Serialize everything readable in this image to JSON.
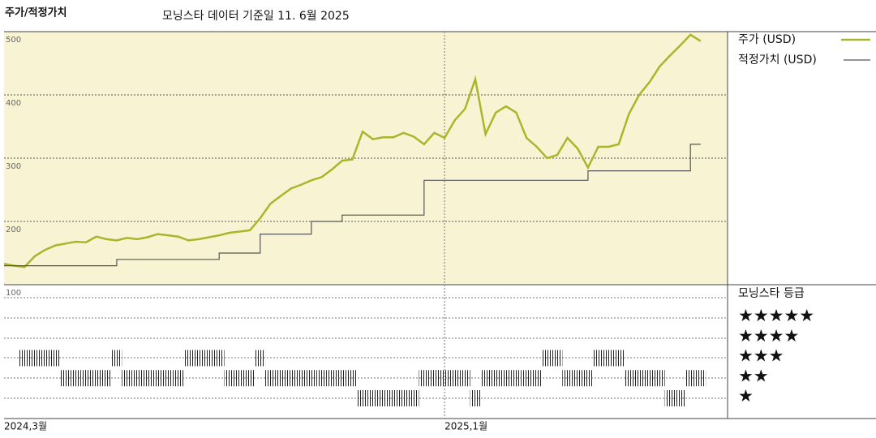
{
  "chart_data": {
    "type": "line",
    "title": "주가/적정가치",
    "subtitle": "모닝스타 데이터 기준일 11. 6월 2025",
    "categories": [
      "2024,3월",
      null,
      null,
      null,
      null,
      null,
      null,
      null,
      null,
      null,
      null,
      null,
      null,
      null,
      null,
      null,
      null,
      null,
      null,
      null,
      null,
      null,
      null,
      null,
      null,
      null,
      null,
      null,
      null,
      null,
      null,
      null,
      null,
      null,
      null,
      null,
      null,
      null,
      null,
      null,
      null,
      null,
      null,
      "2025,1월",
      null,
      null,
      null,
      null,
      null,
      null,
      null,
      null,
      null,
      null,
      null,
      null,
      null,
      null,
      null,
      null,
      null,
      null,
      null,
      null,
      null,
      null,
      null,
      null,
      null
    ],
    "series": [
      {
        "name": "주가 (USD)",
        "color": "#a9b52a",
        "values": [
          133,
          130,
          128,
          145,
          155,
          162,
          165,
          168,
          167,
          176,
          172,
          170,
          174,
          172,
          175,
          180,
          178,
          176,
          170,
          172,
          175,
          178,
          182,
          184,
          186,
          205,
          228,
          240,
          252,
          258,
          265,
          270,
          282,
          296,
          298,
          342,
          330,
          333,
          333,
          340,
          334,
          322,
          340,
          332,
          360,
          378,
          425,
          338,
          372,
          382,
          372,
          332,
          318,
          300,
          305,
          332,
          315,
          285,
          318,
          318,
          322,
          370,
          400,
          420,
          445,
          462,
          478,
          495,
          485
        ]
      },
      {
        "name": "적정가치 (USD)",
        "color": "#555555",
        "step": true,
        "values": [
          130,
          130,
          130,
          130,
          130,
          130,
          130,
          130,
          130,
          130,
          130,
          140,
          140,
          140,
          140,
          140,
          140,
          140,
          140,
          140,
          140,
          150,
          150,
          150,
          150,
          180,
          180,
          180,
          180,
          180,
          200,
          200,
          200,
          210,
          210,
          210,
          210,
          210,
          210,
          210,
          210,
          265,
          265,
          265,
          265,
          265,
          265,
          265,
          265,
          265,
          265,
          265,
          265,
          265,
          265,
          265,
          265,
          280,
          280,
          280,
          280,
          280,
          280,
          280,
          280,
          280,
          280,
          322,
          322
        ]
      }
    ],
    "ylim": [
      100,
      500
    ],
    "yticks": [
      100,
      200,
      300,
      400,
      500
    ],
    "grid": true,
    "rating": {
      "title": "모닝스타 등급",
      "levels": [
        "★★★★★",
        "★★★★",
        "★★★",
        "★★",
        "★"
      ],
      "values": [
        null,
        null,
        3,
        3,
        3,
        3,
        2,
        2,
        2,
        2,
        2,
        3,
        2,
        2,
        2,
        2,
        2,
        2,
        3,
        3,
        3,
        3,
        2,
        2,
        2,
        3,
        2,
        2,
        2,
        2,
        2,
        2,
        2,
        2,
        2,
        1,
        1,
        1,
        1,
        1,
        1,
        2,
        2,
        2,
        2,
        2,
        1,
        2,
        2,
        2,
        2,
        2,
        2,
        3,
        3,
        2,
        2,
        2,
        3,
        3,
        3,
        2,
        2,
        2,
        2,
        1,
        1,
        2,
        2
      ]
    }
  }
}
